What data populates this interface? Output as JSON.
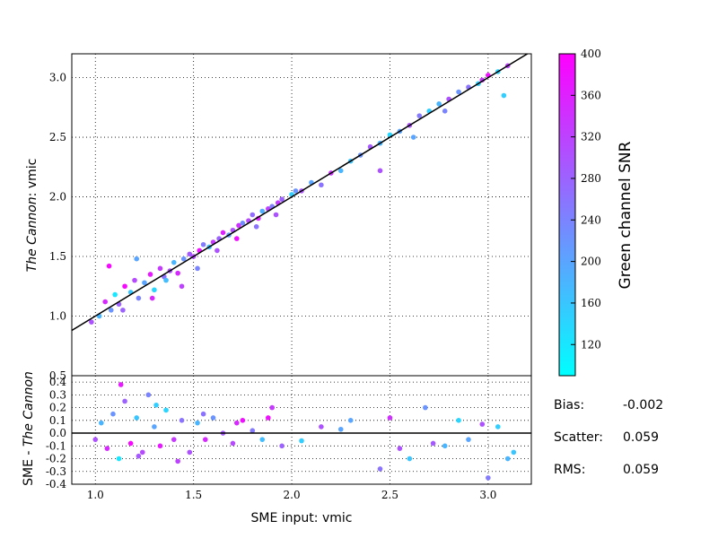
{
  "chart_data": [
    {
      "type": "scatter",
      "panel": "main",
      "ylabel_italic": "The Cannon",
      "ylabel_rest": ": vmic",
      "xlim": [
        0.88,
        3.22
      ],
      "ylim": [
        0.5,
        3.2
      ],
      "xticks": [
        "1.0",
        "1.5",
        "2.0",
        "2.5",
        "3.0"
      ],
      "yticks": [
        "0.5",
        "1.0",
        "1.5",
        "2.0",
        "2.5",
        "3.0"
      ],
      "grid": true,
      "reference_line": "y = x",
      "color_variable": "Green channel SNR",
      "series": [
        {
          "x": [
            0.98,
            1.02,
            1.05,
            1.08,
            1.1,
            1.12,
            1.15,
            1.18,
            1.2,
            1.22,
            1.25,
            1.28,
            1.3,
            1.33,
            1.35,
            1.38,
            1.4,
            1.42,
            1.45,
            1.48,
            1.5,
            1.53,
            1.55,
            1.58,
            1.6,
            1.63,
            1.65,
            1.68,
            1.7,
            1.73,
            1.75,
            1.78,
            1.8,
            1.83,
            1.85,
            1.88,
            1.9,
            1.93,
            1.95,
            2.0,
            2.05,
            2.1,
            2.15,
            2.2,
            2.3,
            2.35,
            2.4,
            2.45,
            2.5,
            2.55,
            2.6,
            2.65,
            2.7,
            2.75,
            2.8,
            2.85,
            2.9,
            2.95,
            3.0,
            3.05,
            3.1,
            1.07,
            1.14,
            1.21,
            1.29,
            1.36,
            1.44,
            1.52,
            1.62,
            1.72,
            1.82,
            1.92,
            2.02,
            2.25,
            2.45,
            2.62,
            2.78,
            2.97,
            3.08
          ],
          "y": [
            0.95,
            1.0,
            1.12,
            1.05,
            1.18,
            1.1,
            1.25,
            1.2,
            1.3,
            1.15,
            1.28,
            1.35,
            1.22,
            1.4,
            1.33,
            1.38,
            1.45,
            1.36,
            1.48,
            1.52,
            1.5,
            1.55,
            1.6,
            1.58,
            1.62,
            1.65,
            1.7,
            1.68,
            1.72,
            1.76,
            1.78,
            1.8,
            1.85,
            1.82,
            1.88,
            1.9,
            1.92,
            1.95,
            1.98,
            2.02,
            2.05,
            2.12,
            2.1,
            2.2,
            2.3,
            2.35,
            2.42,
            2.45,
            2.52,
            2.55,
            2.6,
            2.68,
            2.72,
            2.78,
            2.82,
            2.88,
            2.92,
            2.95,
            3.02,
            3.05,
            3.1,
            1.42,
            1.05,
            1.48,
            1.15,
            1.3,
            1.25,
            1.4,
            1.55,
            1.65,
            1.75,
            1.85,
            2.05,
            2.22,
            2.22,
            2.5,
            2.72,
            2.98,
            2.85
          ],
          "snr": [
            300,
            180,
            350,
            220,
            120,
            280,
            390,
            160,
            310,
            240,
            200,
            370,
            140,
            330,
            260,
            300,
            180,
            350,
            220,
            290,
            310,
            380,
            250,
            170,
            330,
            280,
            360,
            210,
            300,
            340,
            230,
            310,
            270,
            360,
            190,
            320,
            250,
            330,
            280,
            150,
            300,
            200,
            260,
            340,
            160,
            220,
            290,
            180,
            140,
            200,
            300,
            250,
            150,
            180,
            300,
            220,
            260,
            150,
            380,
            140,
            320,
            390,
            280,
            200,
            350,
            170,
            320,
            240,
            300,
            380,
            260,
            300,
            220,
            180,
            300,
            200,
            240,
            330,
            150
          ]
        }
      ]
    },
    {
      "type": "scatter",
      "panel": "residual",
      "xlabel": "SME input: vmic",
      "ylabel_prefix": "SME - ",
      "ylabel_italic": "The Cannon",
      "xlim": [
        0.88,
        3.22
      ],
      "ylim": [
        -0.4,
        0.45
      ],
      "xticks": [
        "1.0",
        "1.5",
        "2.0",
        "2.5",
        "3.0"
      ],
      "yticks": [
        "-0.4",
        "-0.3",
        "-0.2",
        "-0.1",
        "0.0",
        "0.1",
        "0.2",
        "0.3",
        "0.4"
      ],
      "grid": true,
      "reference_line": "y = 0",
      "series": [
        {
          "x": [
            1.0,
            1.03,
            1.06,
            1.09,
            1.12,
            1.15,
            1.18,
            1.21,
            1.24,
            1.27,
            1.3,
            1.33,
            1.36,
            1.4,
            1.44,
            1.48,
            1.52,
            1.56,
            1.6,
            1.65,
            1.7,
            1.75,
            1.8,
            1.85,
            1.9,
            1.95,
            2.05,
            2.15,
            2.3,
            2.45,
            2.5,
            2.6,
            2.68,
            2.72,
            2.78,
            2.85,
            2.9,
            2.97,
            3.0,
            3.05,
            3.1,
            3.13,
            1.13,
            1.22,
            1.31,
            1.42,
            1.55,
            1.72,
            1.88,
            2.25,
            2.55
          ],
          "y": [
            -0.05,
            0.08,
            -0.12,
            0.15,
            -0.2,
            0.25,
            -0.08,
            0.12,
            -0.15,
            0.3,
            0.05,
            -0.1,
            0.18,
            -0.05,
            0.1,
            -0.15,
            0.08,
            -0.05,
            0.12,
            0.0,
            -0.08,
            0.1,
            0.02,
            -0.05,
            0.2,
            -0.1,
            -0.06,
            0.05,
            0.1,
            -0.28,
            0.12,
            -0.2,
            0.2,
            -0.08,
            -0.1,
            0.1,
            -0.05,
            0.07,
            -0.35,
            0.05,
            -0.2,
            -0.15,
            0.38,
            -0.18,
            0.22,
            -0.22,
            0.15,
            0.08,
            0.12,
            0.03,
            -0.12
          ],
          "snr": [
            300,
            180,
            350,
            220,
            120,
            280,
            390,
            160,
            310,
            240,
            200,
            370,
            140,
            330,
            260,
            300,
            180,
            350,
            220,
            290,
            310,
            380,
            250,
            170,
            330,
            280,
            150,
            300,
            200,
            260,
            340,
            160,
            220,
            290,
            180,
            140,
            200,
            300,
            250,
            150,
            180,
            160,
            370,
            290,
            150,
            320,
            260,
            350,
            380,
            200,
            300
          ]
        }
      ]
    }
  ],
  "colorbar": {
    "label": "Green channel SNR",
    "min": 90,
    "max": 400,
    "ticks": [
      "120",
      "160",
      "200",
      "240",
      "280",
      "320",
      "360",
      "400"
    ],
    "colormap": [
      "#00ffff",
      "#ff00ff"
    ]
  },
  "stats": {
    "bias_label": "Bias:",
    "bias_value": "-0.002",
    "scatter_label": "Scatter:",
    "scatter_value": "0.059",
    "rms_label": "RMS:",
    "rms_value": "0.059"
  }
}
